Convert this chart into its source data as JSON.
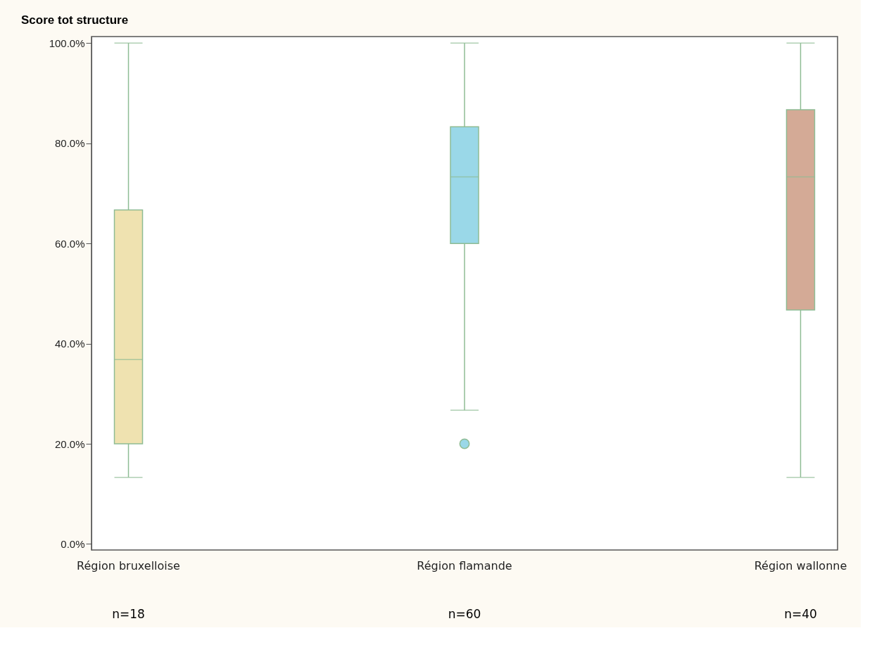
{
  "chart_data": {
    "type": "box",
    "title": "Score tot structure",
    "categories": [
      "Région bruxelloise",
      "Région flamande",
      "Région wallonne"
    ],
    "boxes": [
      {
        "low": 13.3,
        "q1": 20,
        "median": 36.8,
        "q3": 66.7,
        "high": 100
      },
      {
        "low": 26.7,
        "q1": 60,
        "median": 73.3,
        "q3": 83.3,
        "high": 100,
        "outliers": [
          20
        ]
      },
      {
        "low": 13.3,
        "q1": 46.7,
        "median": 73.3,
        "q3": 86.7,
        "high": 100
      }
    ],
    "colors": [
      "#efe2b0",
      "#9ad8e8",
      "#d4aa96"
    ],
    "ylim": [
      -1.2,
      101.3
    ],
    "yticks": [
      {
        "value": 0,
        "label": "0.0%"
      },
      {
        "value": 20,
        "label": "20.0%"
      },
      {
        "value": 40,
        "label": "40.0%"
      },
      {
        "value": 60,
        "label": "60.0%"
      },
      {
        "value": 80,
        "label": "80.0%"
      },
      {
        "value": 100,
        "label": "100.0%"
      }
    ],
    "annotations": [
      "n=18",
      "n=60",
      "n=40"
    ]
  }
}
